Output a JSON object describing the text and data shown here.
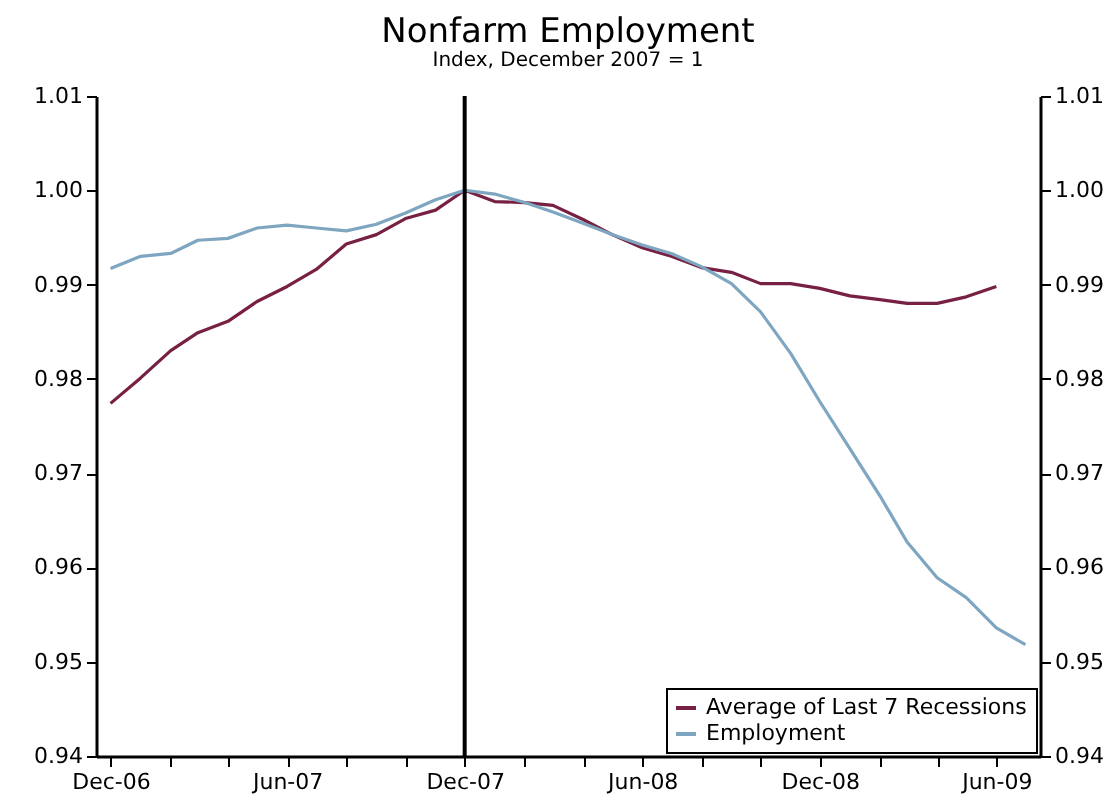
{
  "chart_data": {
    "type": "line",
    "title": "Nonfarm Employment",
    "subtitle": "Index, December 2007 = 1",
    "x": [
      "2006-12",
      "2007-01",
      "2007-02",
      "2007-03",
      "2007-04",
      "2007-05",
      "2007-06",
      "2007-07",
      "2007-08",
      "2007-09",
      "2007-10",
      "2007-11",
      "2007-12",
      "2008-01",
      "2008-02",
      "2008-03",
      "2008-04",
      "2008-05",
      "2008-06",
      "2008-07",
      "2008-08",
      "2008-09",
      "2008-10",
      "2008-11",
      "2008-12",
      "2009-01",
      "2009-02",
      "2009-03",
      "2009-04",
      "2009-05",
      "2009-06",
      "2009-07"
    ],
    "series": [
      {
        "name": "Average of Last 7 Recessions",
        "color": "#772043",
        "values": [
          0.9774,
          0.9801,
          0.983,
          0.9849,
          0.9861,
          0.9882,
          0.9898,
          0.9916,
          0.9943,
          0.9953,
          0.997,
          0.9979,
          1.0,
          0.9988,
          0.9987,
          0.9984,
          0.9969,
          0.9953,
          0.9939,
          0.993,
          0.9918,
          0.9913,
          0.9901,
          0.9901,
          0.9896,
          0.9888,
          0.9884,
          0.988,
          0.988,
          0.9887,
          0.9898,
          null
        ]
      },
      {
        "name": "Employment",
        "color": "#7ea6c0",
        "values": [
          0.9917,
          0.993,
          0.9933,
          0.9947,
          0.9949,
          0.996,
          0.9963,
          0.996,
          0.9957,
          0.9964,
          0.9976,
          0.999,
          1.0,
          0.9996,
          0.9987,
          0.9977,
          0.9965,
          0.9953,
          0.9942,
          0.9933,
          0.9919,
          0.9901,
          0.9871,
          0.9827,
          0.9776,
          0.9726,
          0.9676,
          0.9627,
          0.9589,
          0.9568,
          0.9536,
          0.9518
        ]
      }
    ],
    "xlim": [
      "2006-11-16",
      "2009-07-16"
    ],
    "xticks": [
      {
        "value": "2006-12",
        "label": "Dec-06"
      },
      {
        "value": "2007-02",
        "label": null
      },
      {
        "value": "2007-04",
        "label": null
      },
      {
        "value": "2007-06",
        "label": "Jun-07"
      },
      {
        "value": "2007-08",
        "label": null
      },
      {
        "value": "2007-10",
        "label": null
      },
      {
        "value": "2007-12",
        "label": "Dec-07"
      },
      {
        "value": "2008-02",
        "label": null
      },
      {
        "value": "2008-04",
        "label": null
      },
      {
        "value": "2008-06",
        "label": "Jun-08"
      },
      {
        "value": "2008-08",
        "label": null
      },
      {
        "value": "2008-10",
        "label": null
      },
      {
        "value": "2008-12",
        "label": "Dec-08"
      },
      {
        "value": "2009-02",
        "label": null
      },
      {
        "value": "2009-04",
        "label": null
      },
      {
        "value": "2009-06",
        "label": "Jun-09"
      }
    ],
    "ylim": [
      0.94,
      1.01
    ],
    "yticks": [
      0.94,
      0.95,
      0.96,
      0.97,
      0.98,
      0.99,
      {
        "value": 1.0,
        "label": "1.00"
      },
      1.01
    ],
    "y2lim": [
      0.94,
      1.01
    ],
    "y2ticks": [
      0.94,
      0.95,
      0.96,
      0.97,
      0.98,
      0.99,
      {
        "value": 1.0,
        "label": "1.00"
      },
      1.01
    ],
    "ref_lines": [
      {
        "axis": "x",
        "value": "2007-12",
        "color": "#000000"
      }
    ],
    "legend": "bottom right",
    "grid": false,
    "marker": "none",
    "line_style": "solid"
  }
}
